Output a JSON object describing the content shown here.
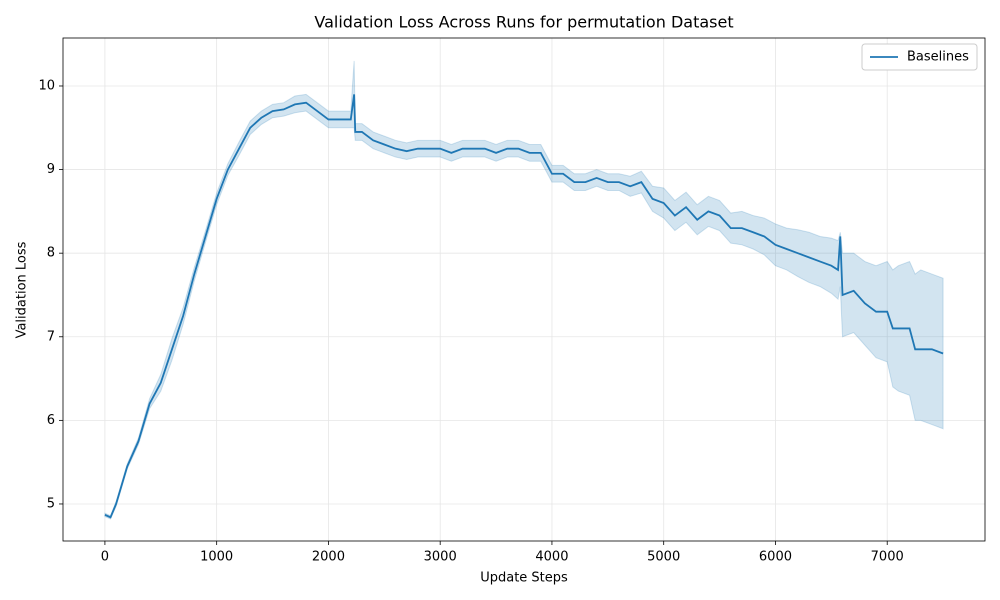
{
  "chart_data": {
    "type": "line",
    "title": "Validation Loss Across Runs for permutation Dataset",
    "xlabel": "Update Steps",
    "ylabel": "Validation Loss",
    "xlim": [
      -375,
      7875
    ],
    "ylim": [
      4.557,
      10.574
    ],
    "xticks": [
      0,
      1000,
      2000,
      3000,
      4000,
      5000,
      6000,
      7000
    ],
    "yticks": [
      5,
      6,
      7,
      8,
      9,
      10
    ],
    "grid": true,
    "legend": "upper right",
    "x": [
      0,
      50,
      100,
      200,
      300,
      400,
      500,
      600,
      700,
      800,
      900,
      1000,
      1100,
      1200,
      1300,
      1400,
      1500,
      1600,
      1700,
      1800,
      1900,
      2000,
      2100,
      2200,
      2230,
      2240,
      2300,
      2400,
      2500,
      2600,
      2700,
      2800,
      2900,
      3000,
      3100,
      3200,
      3300,
      3400,
      3500,
      3600,
      3700,
      3800,
      3900,
      4000,
      4100,
      4200,
      4300,
      4400,
      4500,
      4600,
      4700,
      4800,
      4900,
      5000,
      5100,
      5200,
      5300,
      5400,
      5500,
      5600,
      5700,
      5800,
      5900,
      6000,
      6100,
      6200,
      6300,
      6400,
      6500,
      6560,
      6580,
      6600,
      6700,
      6800,
      6900,
      7000,
      7050,
      7100,
      7200,
      7250,
      7300,
      7400,
      7500
    ],
    "series": [
      {
        "name": "Baselines",
        "color": "#1f77b4",
        "values": [
          4.87,
          4.84,
          5.0,
          5.45,
          5.75,
          6.2,
          6.45,
          6.85,
          7.25,
          7.75,
          8.2,
          8.65,
          9.0,
          9.25,
          9.5,
          9.62,
          9.7,
          9.72,
          9.78,
          9.8,
          9.7,
          9.6,
          9.6,
          9.6,
          9.9,
          9.45,
          9.45,
          9.35,
          9.3,
          9.25,
          9.22,
          9.25,
          9.25,
          9.25,
          9.2,
          9.25,
          9.25,
          9.25,
          9.2,
          9.25,
          9.25,
          9.2,
          9.2,
          8.95,
          8.95,
          8.85,
          8.85,
          8.9,
          8.85,
          8.85,
          8.8,
          8.85,
          8.65,
          8.6,
          8.45,
          8.55,
          8.4,
          8.5,
          8.45,
          8.3,
          8.3,
          8.25,
          8.2,
          8.1,
          8.05,
          8.0,
          7.95,
          7.9,
          7.85,
          7.8,
          8.2,
          7.5,
          7.55,
          7.4,
          7.3,
          7.3,
          7.1,
          7.1,
          7.1,
          6.85,
          6.85,
          6.85,
          6.8
        ],
        "lower": [
          4.85,
          4.82,
          4.97,
          5.42,
          5.71,
          6.14,
          6.35,
          6.72,
          7.15,
          7.67,
          8.13,
          8.58,
          8.93,
          9.17,
          9.42,
          9.54,
          9.62,
          9.64,
          9.68,
          9.7,
          9.6,
          9.5,
          9.5,
          9.5,
          9.5,
          9.35,
          9.35,
          9.25,
          9.2,
          9.15,
          9.12,
          9.15,
          9.15,
          9.15,
          9.1,
          9.15,
          9.15,
          9.15,
          9.1,
          9.15,
          9.15,
          9.1,
          9.1,
          8.85,
          8.85,
          8.75,
          8.75,
          8.8,
          8.75,
          8.75,
          8.68,
          8.72,
          8.5,
          8.42,
          8.27,
          8.37,
          8.22,
          8.32,
          8.27,
          8.12,
          8.1,
          8.05,
          7.98,
          7.85,
          7.8,
          7.72,
          7.65,
          7.6,
          7.52,
          7.45,
          7.6,
          7.0,
          7.05,
          6.9,
          6.75,
          6.7,
          6.4,
          6.35,
          6.3,
          6.0,
          6.0,
          5.95,
          5.9
        ],
        "upper": [
          4.89,
          4.86,
          5.03,
          5.48,
          5.79,
          6.26,
          6.55,
          6.98,
          7.35,
          7.83,
          8.27,
          8.72,
          9.07,
          9.33,
          9.58,
          9.7,
          9.78,
          9.8,
          9.88,
          9.9,
          9.8,
          9.7,
          9.7,
          9.7,
          10.3,
          9.55,
          9.55,
          9.45,
          9.4,
          9.35,
          9.32,
          9.35,
          9.35,
          9.35,
          9.3,
          9.35,
          9.35,
          9.35,
          9.3,
          9.35,
          9.35,
          9.3,
          9.3,
          9.05,
          9.05,
          8.95,
          8.95,
          9.0,
          8.95,
          8.95,
          8.92,
          8.98,
          8.8,
          8.78,
          8.63,
          8.73,
          8.58,
          8.68,
          8.63,
          8.48,
          8.5,
          8.45,
          8.42,
          8.35,
          8.3,
          8.28,
          8.25,
          8.2,
          8.18,
          8.15,
          8.25,
          8.0,
          8.0,
          7.9,
          7.85,
          7.9,
          7.8,
          7.85,
          7.9,
          7.75,
          7.8,
          7.75,
          7.7
        ]
      }
    ]
  }
}
